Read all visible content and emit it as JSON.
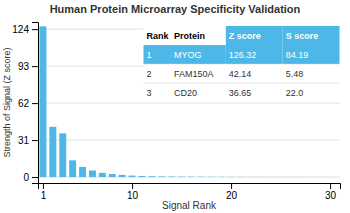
{
  "chart_data": {
    "type": "bar",
    "title": "Human Protein Microarray Specificity Validation",
    "xlabel": "Signal Rank",
    "ylabel": "Strength of Signal (Z score)",
    "x": [
      1,
      2,
      3,
      4,
      5,
      6,
      7,
      8,
      9,
      10,
      11,
      12,
      13,
      14,
      15,
      16,
      17,
      18,
      19,
      20,
      21,
      22,
      23,
      24,
      25,
      26,
      27,
      28,
      29,
      30
    ],
    "values": [
      126.32,
      42.14,
      36.65,
      14.0,
      8.5,
      5.5,
      3.5,
      2.5,
      1.8,
      1.2,
      0.9,
      0.7,
      0.5,
      0.4,
      0.35,
      0.3,
      0.25,
      0.22,
      0.2,
      0.18,
      0.15,
      0.13,
      0.12,
      0.11,
      0.1,
      0.09,
      0.08,
      0.07,
      0.06,
      0.05
    ],
    "color": "#4db8e8",
    "xlim": [
      0.5,
      31
    ],
    "xticks": [
      1,
      10,
      20,
      30
    ],
    "ylim": [
      -5,
      130
    ],
    "yticks": [
      0,
      31,
      62,
      93,
      124
    ],
    "grid": true,
    "table": [
      [
        "Rank",
        "Protein",
        "Z score",
        "S score"
      ],
      [
        "1",
        "MYOG",
        "126.32",
        "84.19"
      ],
      [
        "2",
        "FAM150A",
        "42.14",
        "5.48"
      ],
      [
        "3",
        "CD20",
        "36.65",
        "22.0"
      ]
    ]
  }
}
